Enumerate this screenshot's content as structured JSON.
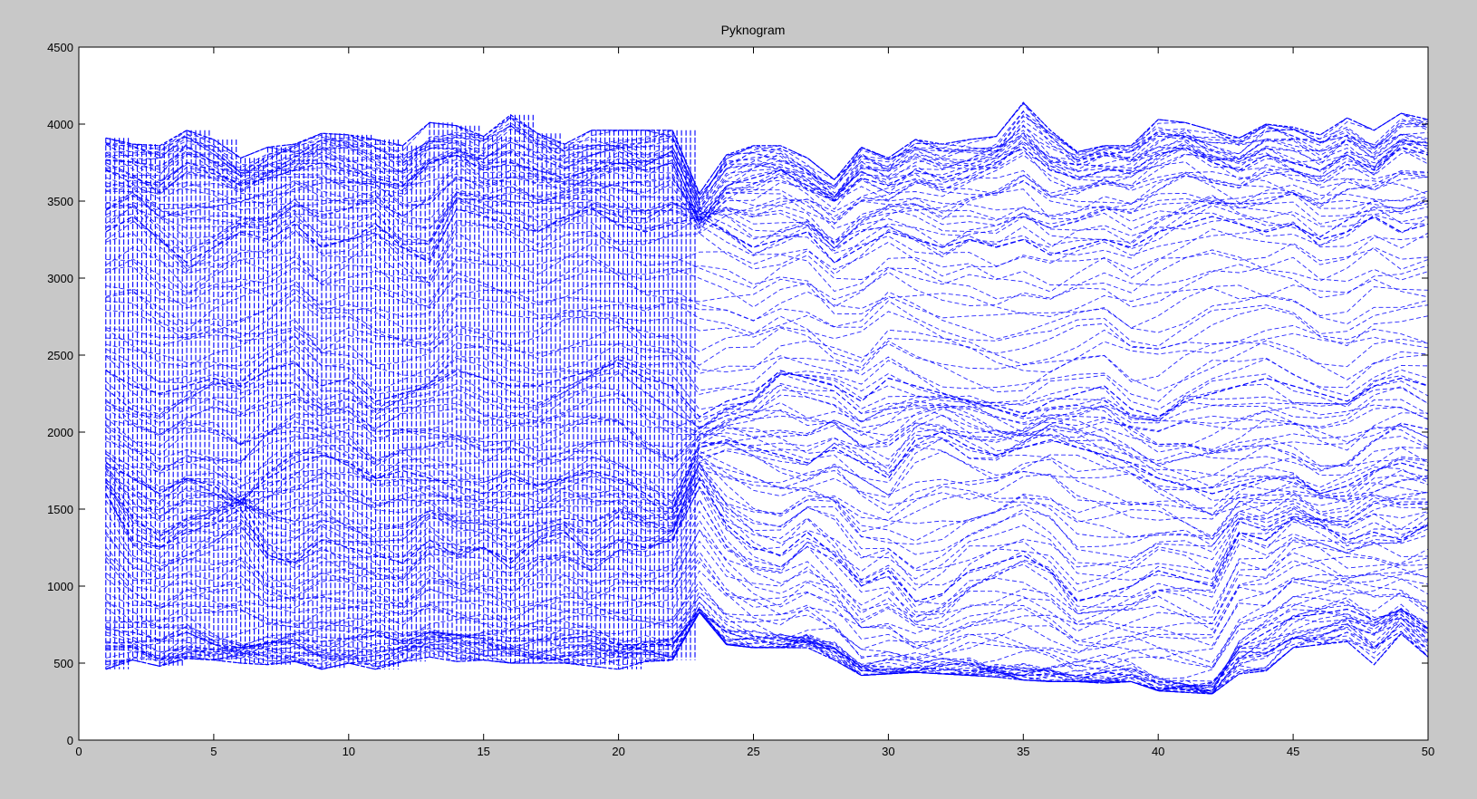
{
  "chart_data": {
    "type": "line",
    "title": "Pyknogram",
    "xlabel": "",
    "ylabel": "",
    "xlim": [
      0,
      50
    ],
    "ylim": [
      0,
      4500
    ],
    "xticks": [
      0,
      5,
      10,
      15,
      20,
      25,
      30,
      35,
      40,
      45,
      50
    ],
    "yticks": [
      0,
      500,
      1000,
      1500,
      2000,
      2500,
      3000,
      3500,
      4000,
      4500
    ],
    "grid": false,
    "legend": "none",
    "line_color": "#0000ff",
    "line_style": "dashed",
    "x": [
      1,
      2,
      3,
      4,
      5,
      6,
      7,
      8,
      9,
      10,
      11,
      12,
      13,
      14,
      15,
      16,
      17,
      18,
      19,
      20,
      21,
      22,
      23,
      24,
      25,
      26,
      27,
      28,
      29,
      30,
      31,
      32,
      33,
      34,
      35,
      36,
      37,
      38,
      39,
      40,
      41,
      42,
      43,
      44,
      45,
      46,
      47,
      48,
      49,
      50
    ],
    "envelope_upper": [
      3910,
      3870,
      3860,
      3960,
      3900,
      3780,
      3850,
      3870,
      3940,
      3930,
      3900,
      3860,
      4010,
      3990,
      3920,
      4060,
      3940,
      3870,
      3960,
      3960,
      3960,
      3960,
      3550,
      3800,
      3860,
      3860,
      3780,
      3640,
      3850,
      3780,
      3900,
      3870,
      3900,
      3920,
      4140,
      3960,
      3820,
      3860,
      3860,
      4030,
      4010,
      3960,
      3910,
      4000,
      3980,
      3930,
      4040,
      3960,
      4070,
      4030
    ],
    "envelope_lower": [
      460,
      520,
      480,
      530,
      520,
      500,
      490,
      510,
      460,
      500,
      460,
      510,
      540,
      510,
      520,
      500,
      500,
      500,
      480,
      460,
      510,
      520,
      830,
      620,
      600,
      600,
      600,
      520,
      420,
      430,
      440,
      430,
      420,
      410,
      390,
      380,
      380,
      370,
      380,
      320,
      310,
      300,
      430,
      450,
      600,
      620,
      640,
      490,
      690,
      540
    ],
    "tracks": [
      {
        "name": "",
        "values": [
          720,
          700,
          650,
          700,
          620,
          600,
          630,
          650,
          640,
          660,
          680,
          640,
          700,
          680,
          660,
          640,
          650,
          660,
          680,
          620,
          620,
          620,
          850,
          700,
          650,
          620,
          640,
          600,
          450,
          460,
          470,
          460,
          450,
          440,
          420,
          430,
          420,
          440,
          420,
          340,
          330,
          320,
          600,
          700,
          800,
          820,
          850,
          780,
          850,
          720
        ]
      },
      {
        "name": "",
        "values": [
          1600,
          1300,
          1250,
          1350,
          1400,
          1500,
          1200,
          1150,
          1300,
          1250,
          1200,
          1150,
          1300,
          1200,
          1250,
          1150,
          1300,
          1350,
          1200,
          1300,
          1250,
          1300,
          1700,
          1400,
          1250,
          1200,
          1350,
          1200,
          1000,
          1100,
          900,
          950,
          1100,
          1150,
          1200,
          1100,
          900,
          950,
          1000,
          1100,
          1050,
          1000,
          1350,
          1300,
          1450,
          1400,
          1300,
          1350,
          1300,
          1400
        ]
      },
      {
        "name": "",
        "values": [
          1800,
          1700,
          1600,
          1700,
          1650,
          1550,
          1700,
          1800,
          1850,
          1800,
          1700,
          1750,
          1700,
          1650,
          1600,
          1700,
          1650,
          1700,
          1750,
          1700,
          1600,
          1500,
          1900,
          1950,
          1900,
          1850,
          1800,
          1900,
          1800,
          1700,
          1950,
          2000,
          1900,
          1850,
          1900,
          1950,
          1900,
          1850,
          1800,
          1700,
          1650,
          1600,
          1650,
          1700,
          1700,
          1600,
          1650,
          1750,
          1800,
          1750
        ]
      },
      {
        "name": "",
        "values": [
          2400,
          2300,
          2250,
          2300,
          2350,
          2300,
          2400,
          2450,
          2300,
          2350,
          2200,
          2250,
          2300,
          2400,
          2350,
          2300,
          2300,
          2350,
          2400,
          2450,
          2350,
          2300,
          2100,
          2200,
          2250,
          2400,
          2350,
          2300,
          2200,
          2350,
          2300,
          2250,
          2200,
          2150,
          2100,
          2200,
          2250,
          2300,
          2150,
          2100,
          2200,
          2250,
          2300,
          2350,
          2300,
          2250,
          2200,
          2300,
          2350,
          2300
        ]
      },
      {
        "name": "",
        "values": [
          3300,
          3400,
          3250,
          3100,
          3200,
          3300,
          3250,
          3350,
          3200,
          3250,
          3350,
          3200,
          3100,
          3450,
          3400,
          3350,
          3300,
          3400,
          3450,
          3350,
          3300,
          3350,
          3400,
          3300,
          3200,
          3250,
          3300,
          3100,
          3200,
          3300,
          3250,
          3200,
          3250,
          3200,
          3250,
          3150,
          3200,
          3250,
          3200,
          3300,
          3350,
          3400,
          3350,
          3300,
          3350,
          3250,
          3300,
          3400,
          3300,
          3350
        ]
      },
      {
        "name": "",
        "values": [
          3700,
          3650,
          3600,
          3750,
          3700,
          3600,
          3650,
          3700,
          3750,
          3700,
          3650,
          3600,
          3750,
          3800,
          3700,
          3750,
          3700,
          3650,
          3700,
          3750,
          3700,
          3750,
          3350,
          3600,
          3650,
          3700,
          3600,
          3500,
          3650,
          3600,
          3700,
          3650,
          3700,
          3750,
          3850,
          3700,
          3650,
          3700,
          3700,
          3800,
          3850,
          3750,
          3700,
          3800,
          3750,
          3700,
          3800,
          3700,
          3850,
          3800
        ]
      }
    ]
  }
}
